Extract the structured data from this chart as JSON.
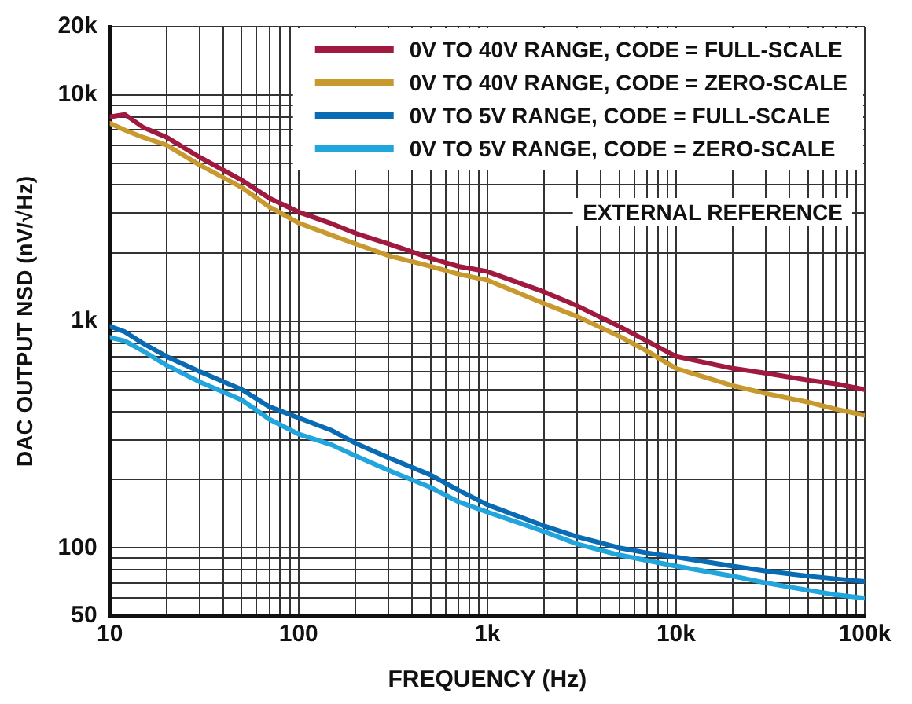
{
  "chart_data": {
    "type": "line",
    "xlabel": "FREQUENCY (Hz)",
    "ylabel": "DAC OUTPUT NSD (nV/√Hz)",
    "log": "xy",
    "grid": true,
    "legend": "top right",
    "marker": "none",
    "line_style": "solid",
    "x": [
      10,
      12,
      15,
      20,
      30,
      50,
      70,
      100,
      150,
      200,
      300,
      500,
      700,
      1000,
      2000,
      3000,
      5000,
      7000,
      10000,
      20000,
      30000,
      50000,
      70000,
      100000
    ],
    "xlim": [
      10,
      100000
    ],
    "xticks": [
      10,
      {
        "value": 20,
        "label": null
      },
      {
        "value": 30,
        "label": null
      },
      {
        "value": 40,
        "label": null
      },
      {
        "value": 50,
        "label": null
      },
      {
        "value": 60,
        "label": null
      },
      {
        "value": 70,
        "label": null
      },
      {
        "value": 80,
        "label": null
      },
      {
        "value": 90,
        "label": null
      },
      100,
      {
        "value": 200,
        "label": null
      },
      {
        "value": 300,
        "label": null
      },
      {
        "value": 400,
        "label": null
      },
      {
        "value": 500,
        "label": null
      },
      {
        "value": 600,
        "label": null
      },
      {
        "value": 700,
        "label": null
      },
      {
        "value": 800,
        "label": null
      },
      {
        "value": 900,
        "label": null
      },
      {
        "value": 1000,
        "label": "1k"
      },
      {
        "value": 2000,
        "label": null
      },
      {
        "value": 3000,
        "label": null
      },
      {
        "value": 4000,
        "label": null
      },
      {
        "value": 5000,
        "label": null
      },
      {
        "value": 6000,
        "label": null
      },
      {
        "value": 7000,
        "label": null
      },
      {
        "value": 8000,
        "label": null
      },
      {
        "value": 9000,
        "label": null
      },
      {
        "value": 10000,
        "label": "10k"
      },
      {
        "value": 20000,
        "label": null
      },
      {
        "value": 30000,
        "label": null
      },
      {
        "value": 40000,
        "label": null
      },
      {
        "value": 50000,
        "label": null
      },
      {
        "value": 60000,
        "label": null
      },
      {
        "value": 70000,
        "label": null
      },
      {
        "value": 80000,
        "label": null
      },
      {
        "value": 90000,
        "label": null
      },
      {
        "value": 100000,
        "label": "100k"
      }
    ],
    "ylim": [
      50,
      20000
    ],
    "yticks": [
      50,
      {
        "value": 60,
        "label": null
      },
      {
        "value": 70,
        "label": null
      },
      {
        "value": 80,
        "label": null
      },
      {
        "value": 90,
        "label": null
      },
      100,
      {
        "value": 200,
        "label": null
      },
      {
        "value": 300,
        "label": null
      },
      {
        "value": 400,
        "label": null
      },
      {
        "value": 500,
        "label": null
      },
      {
        "value": 600,
        "label": null
      },
      {
        "value": 700,
        "label": null
      },
      {
        "value": 800,
        "label": null
      },
      {
        "value": 900,
        "label": null
      },
      {
        "value": 1000,
        "label": "1k"
      },
      {
        "value": 2000,
        "label": null
      },
      {
        "value": 3000,
        "label": null
      },
      {
        "value": 4000,
        "label": null
      },
      {
        "value": 5000,
        "label": null
      },
      {
        "value": 6000,
        "label": null
      },
      {
        "value": 7000,
        "label": null
      },
      {
        "value": 8000,
        "label": null
      },
      {
        "value": 9000,
        "label": null
      },
      {
        "value": 10000,
        "label": "10k"
      },
      {
        "value": 20000,
        "label": "20k"
      }
    ],
    "annotations": [
      "EXTERNAL REFERENCE"
    ],
    "series": [
      {
        "name": "0V TO 40V RANGE, CODE = FULL-SCALE",
        "color": "#a0193f",
        "values": [
          8000,
          8200,
          7200,
          6500,
          5300,
          4200,
          3500,
          3040,
          2700,
          2450,
          2200,
          1900,
          1750,
          1660,
          1350,
          1170,
          950,
          820,
          700,
          620,
          590,
          550,
          530,
          500
        ]
      },
      {
        "name": "0V TO 40V RANGE, CODE = ZERO-SCALE",
        "color": "#c8992e",
        "values": [
          7500,
          7000,
          6500,
          6000,
          4900,
          3900,
          3200,
          2720,
          2400,
          2200,
          1950,
          1750,
          1620,
          1520,
          1200,
          1050,
          860,
          740,
          620,
          520,
          480,
          440,
          410,
          385
        ]
      },
      {
        "name": "0V TO 5V RANGE, CODE = FULL-SCALE",
        "color": "#0a6bb5",
        "values": [
          950,
          900,
          800,
          700,
          600,
          500,
          420,
          375,
          330,
          290,
          250,
          210,
          180,
          155,
          125,
          112,
          100,
          95,
          91,
          83,
          79,
          75,
          73,
          71
        ]
      },
      {
        "name": "0V TO 5V RANGE, CODE = ZERO-SCALE",
        "color": "#22a4dc",
        "values": [
          850,
          820,
          740,
          640,
          540,
          450,
          370,
          318,
          285,
          255,
          220,
          185,
          160,
          144,
          118,
          104,
          93,
          88,
          83,
          75,
          70,
          65,
          62,
          60
        ]
      }
    ]
  }
}
